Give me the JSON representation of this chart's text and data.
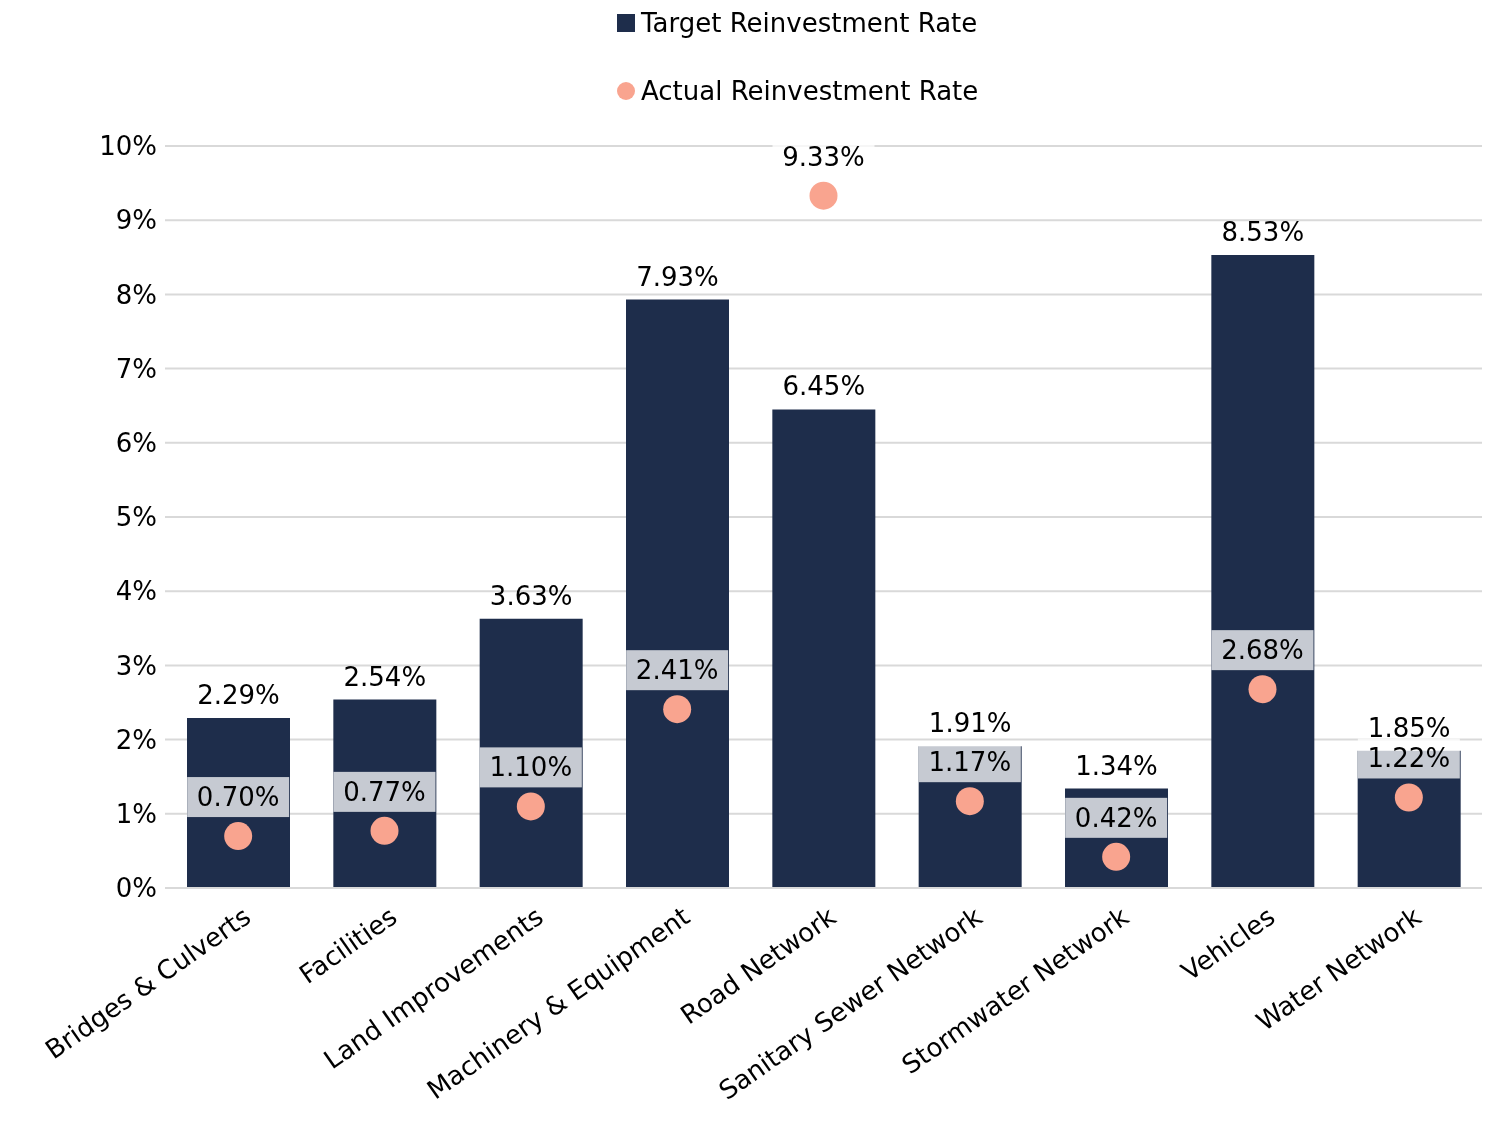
{
  "chart_data": {
    "type": "bar",
    "categories": [
      "Bridges & Culverts",
      "Facilities",
      "Land Improvements",
      "Machinery & Equipment",
      "Road Network",
      "Sanitary Sewer Network",
      "Stormwater Network",
      "Vehicles",
      "Water Network"
    ],
    "series": [
      {
        "name": "Target Reinvestment Rate",
        "type": "bar",
        "color": "#1e2d4b",
        "values": [
          2.29,
          2.54,
          3.63,
          7.93,
          6.45,
          1.91,
          1.34,
          8.53,
          1.85
        ],
        "value_labels": [
          "2.29%",
          "2.54%",
          "3.63%",
          "7.93%",
          "6.45%",
          "1.91%",
          "1.34%",
          "8.53%",
          "1.85%"
        ]
      },
      {
        "name": "Actual Reinvestment Rate",
        "type": "scatter",
        "color": "#f9a48f",
        "values": [
          0.7,
          0.77,
          1.1,
          2.41,
          9.33,
          1.17,
          0.42,
          2.68,
          1.22
        ],
        "value_labels": [
          "0.70%",
          "0.77%",
          "1.10%",
          "2.41%",
          "9.33%",
          "1.17%",
          "0.42%",
          "2.68%",
          "1.22%"
        ]
      }
    ],
    "ylim": [
      0,
      10
    ],
    "yticks": [
      {
        "value": 0,
        "label": "0%"
      },
      {
        "value": 1,
        "label": "1%"
      },
      {
        "value": 2,
        "label": "2%"
      },
      {
        "value": 3,
        "label": "3%"
      },
      {
        "value": 4,
        "label": "4%"
      },
      {
        "value": 5,
        "label": "5%"
      },
      {
        "value": 6,
        "label": "6%"
      },
      {
        "value": 7,
        "label": "7%"
      },
      {
        "value": 8,
        "label": "8%"
      },
      {
        "value": 9,
        "label": "9%"
      },
      {
        "value": 10,
        "label": "10%"
      }
    ],
    "grid": "y",
    "legend": "top",
    "marker": "circle"
  }
}
